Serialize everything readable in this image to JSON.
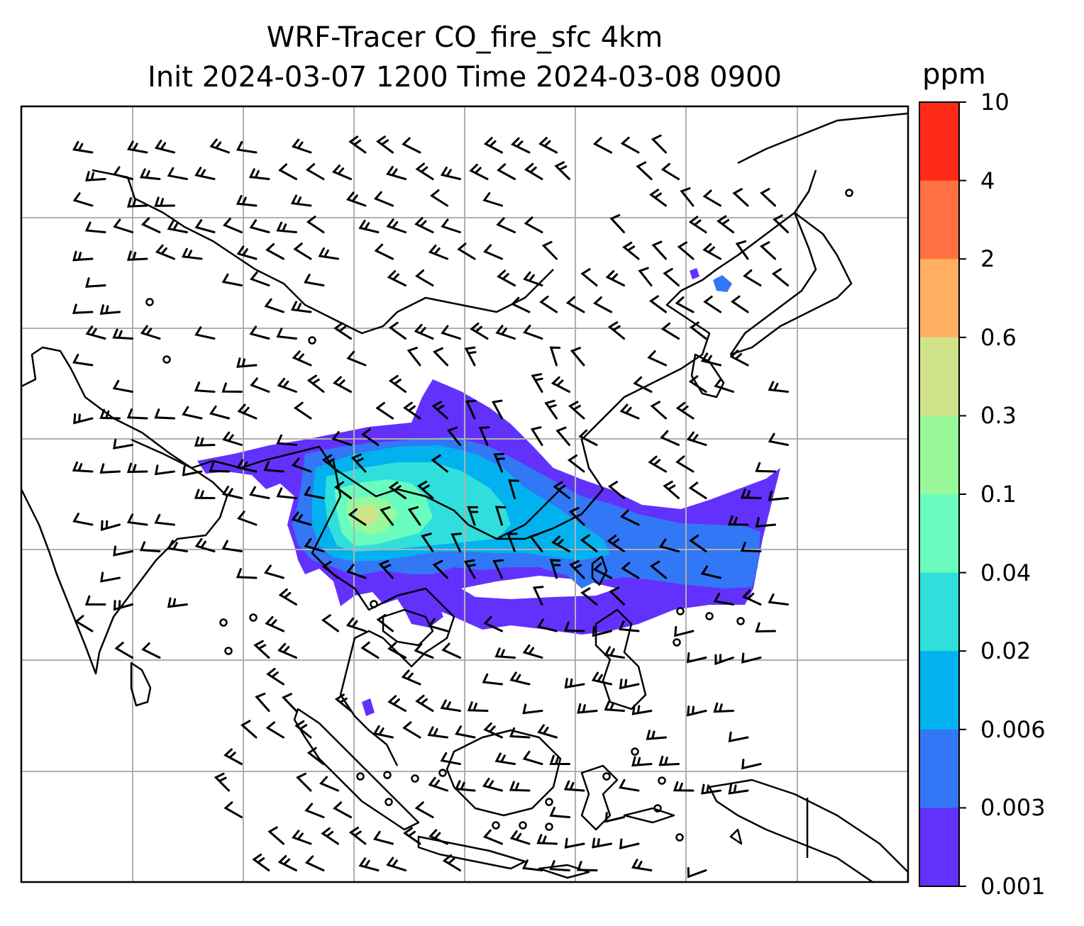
{
  "title": {
    "line1": "WRF-Tracer CO_fire_sfc 4km",
    "line2": "Init 2024-03-07 1200 Time 2024-03-08 0900"
  },
  "colorbar": {
    "label": "ppm",
    "ticks": [
      "10",
      "4",
      "2",
      "0.6",
      "0.3",
      "0.1",
      "0.04",
      "0.02",
      "0.006",
      "0.003",
      "0.001"
    ],
    "colors": [
      "#ff2a1a",
      "#ff7043",
      "#ffb060",
      "#d0e38a",
      "#98f89a",
      "#69fcbe",
      "#30dfdc",
      "#02b2ee",
      "#3277f5",
      "#6331fc"
    ]
  },
  "map": {
    "background": "#ffffff",
    "grid_color": "#b0b0b0",
    "coastline_color": "#000000",
    "barb_color": "#000000",
    "plume_levels_shown": [
      "0.001",
      "0.003",
      "0.006",
      "0.02",
      "0.04",
      "0.1",
      "0.3"
    ]
  }
}
